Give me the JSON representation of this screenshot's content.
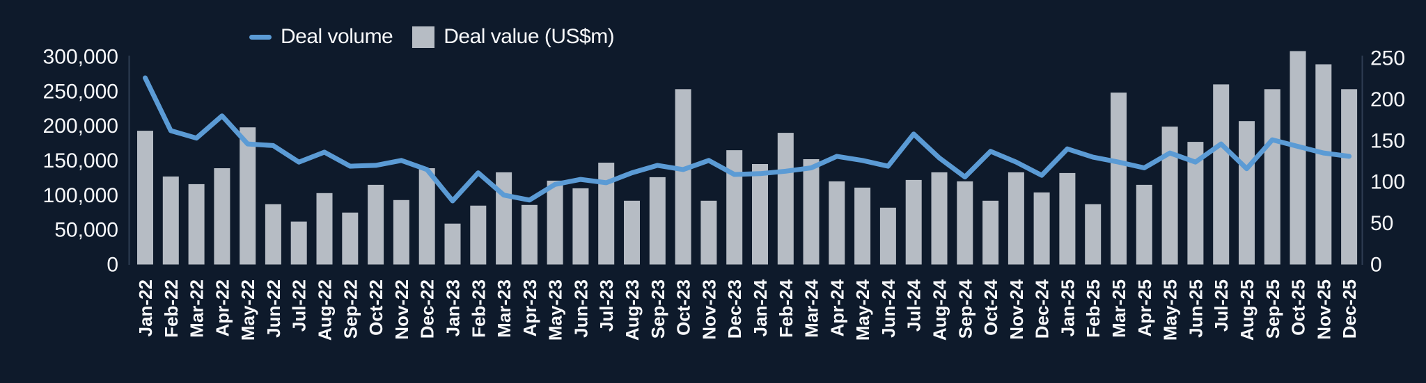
{
  "legend": {
    "volume_label": "Deal volume",
    "value_label": "Deal value (US$m)"
  },
  "colors": {
    "background": "#0e1a2b",
    "bar": "#b6bcc4",
    "line": "#5b9bd5",
    "axis_line": "#2e3d53",
    "text": "#f7f8fa"
  },
  "chart_data": {
    "type": "bar",
    "subtype": "combo-bar-line",
    "title": "",
    "grid": false,
    "legend_position": "top-left",
    "categories": [
      "Jan-22",
      "Feb-22",
      "Mar-22",
      "Apr-22",
      "May-22",
      "Jun-22",
      "Jul-22",
      "Aug-22",
      "Sep-22",
      "Oct-22",
      "Nov-22",
      "Dec-22",
      "Jan-23",
      "Feb-23",
      "Mar-23",
      "Apr-23",
      "May-23",
      "Jun-23",
      "Jul-23",
      "Aug-23",
      "Sep-23",
      "Oct-23",
      "Nov-23",
      "Dec-23",
      "Jan-24",
      "Feb-24",
      "Mar-24",
      "Apr-24",
      "May-24",
      "Jun-24",
      "Jul-24",
      "Aug-24",
      "Sep-24",
      "Oct-24",
      "Nov-24",
      "Dec-24",
      "Jan-25",
      "Feb-25",
      "Mar-25",
      "Apr-25",
      "May-25",
      "Jun-25",
      "Jul-25",
      "Aug-25",
      "Sep-25",
      "Oct-25",
      "Nov-25",
      "Dec-25"
    ],
    "series": [
      {
        "name": "Deal value (US$m)",
        "render": "bar",
        "axis": "left",
        "values": [
          193000,
          127000,
          116000,
          139000,
          198000,
          87000,
          62000,
          103000,
          75000,
          115000,
          93000,
          139000,
          59000,
          85000,
          133000,
          86000,
          121000,
          110000,
          147000,
          92000,
          126000,
          253000,
          92000,
          165000,
          145000,
          190000,
          152000,
          120000,
          111000,
          82000,
          122000,
          133000,
          120000,
          92000,
          133000,
          104000,
          132000,
          87000,
          248000,
          115000,
          199000,
          177000,
          260000,
          207000,
          253000,
          308000,
          289000,
          253000
        ]
      },
      {
        "name": "Deal volume",
        "render": "line",
        "axis": "right",
        "values": [
          226,
          162,
          153,
          180,
          146,
          144,
          124,
          136,
          119,
          120,
          126,
          115,
          77,
          111,
          84,
          78,
          97,
          103,
          99,
          111,
          120,
          115,
          126,
          109,
          110,
          113,
          117,
          131,
          126,
          119,
          158,
          129,
          106,
          137,
          124,
          108,
          140,
          130,
          124,
          117,
          135,
          124,
          146,
          116,
          151,
          143,
          135,
          131
        ]
      }
    ],
    "left_axis": {
      "min": 0,
      "max": 300000,
      "tick_values": [
        0,
        50000,
        100000,
        150000,
        200000,
        250000,
        300000
      ],
      "tick_labels": [
        "0",
        "50,000",
        "100,000",
        "150,000",
        "200,000",
        "250,000",
        "300,000"
      ]
    },
    "right_axis": {
      "min": 0,
      "max": 250,
      "tick_values": [
        0,
        50,
        100,
        150,
        200,
        250
      ],
      "tick_labels": [
        "0",
        "50",
        "100",
        "150",
        "200",
        "250"
      ]
    }
  }
}
